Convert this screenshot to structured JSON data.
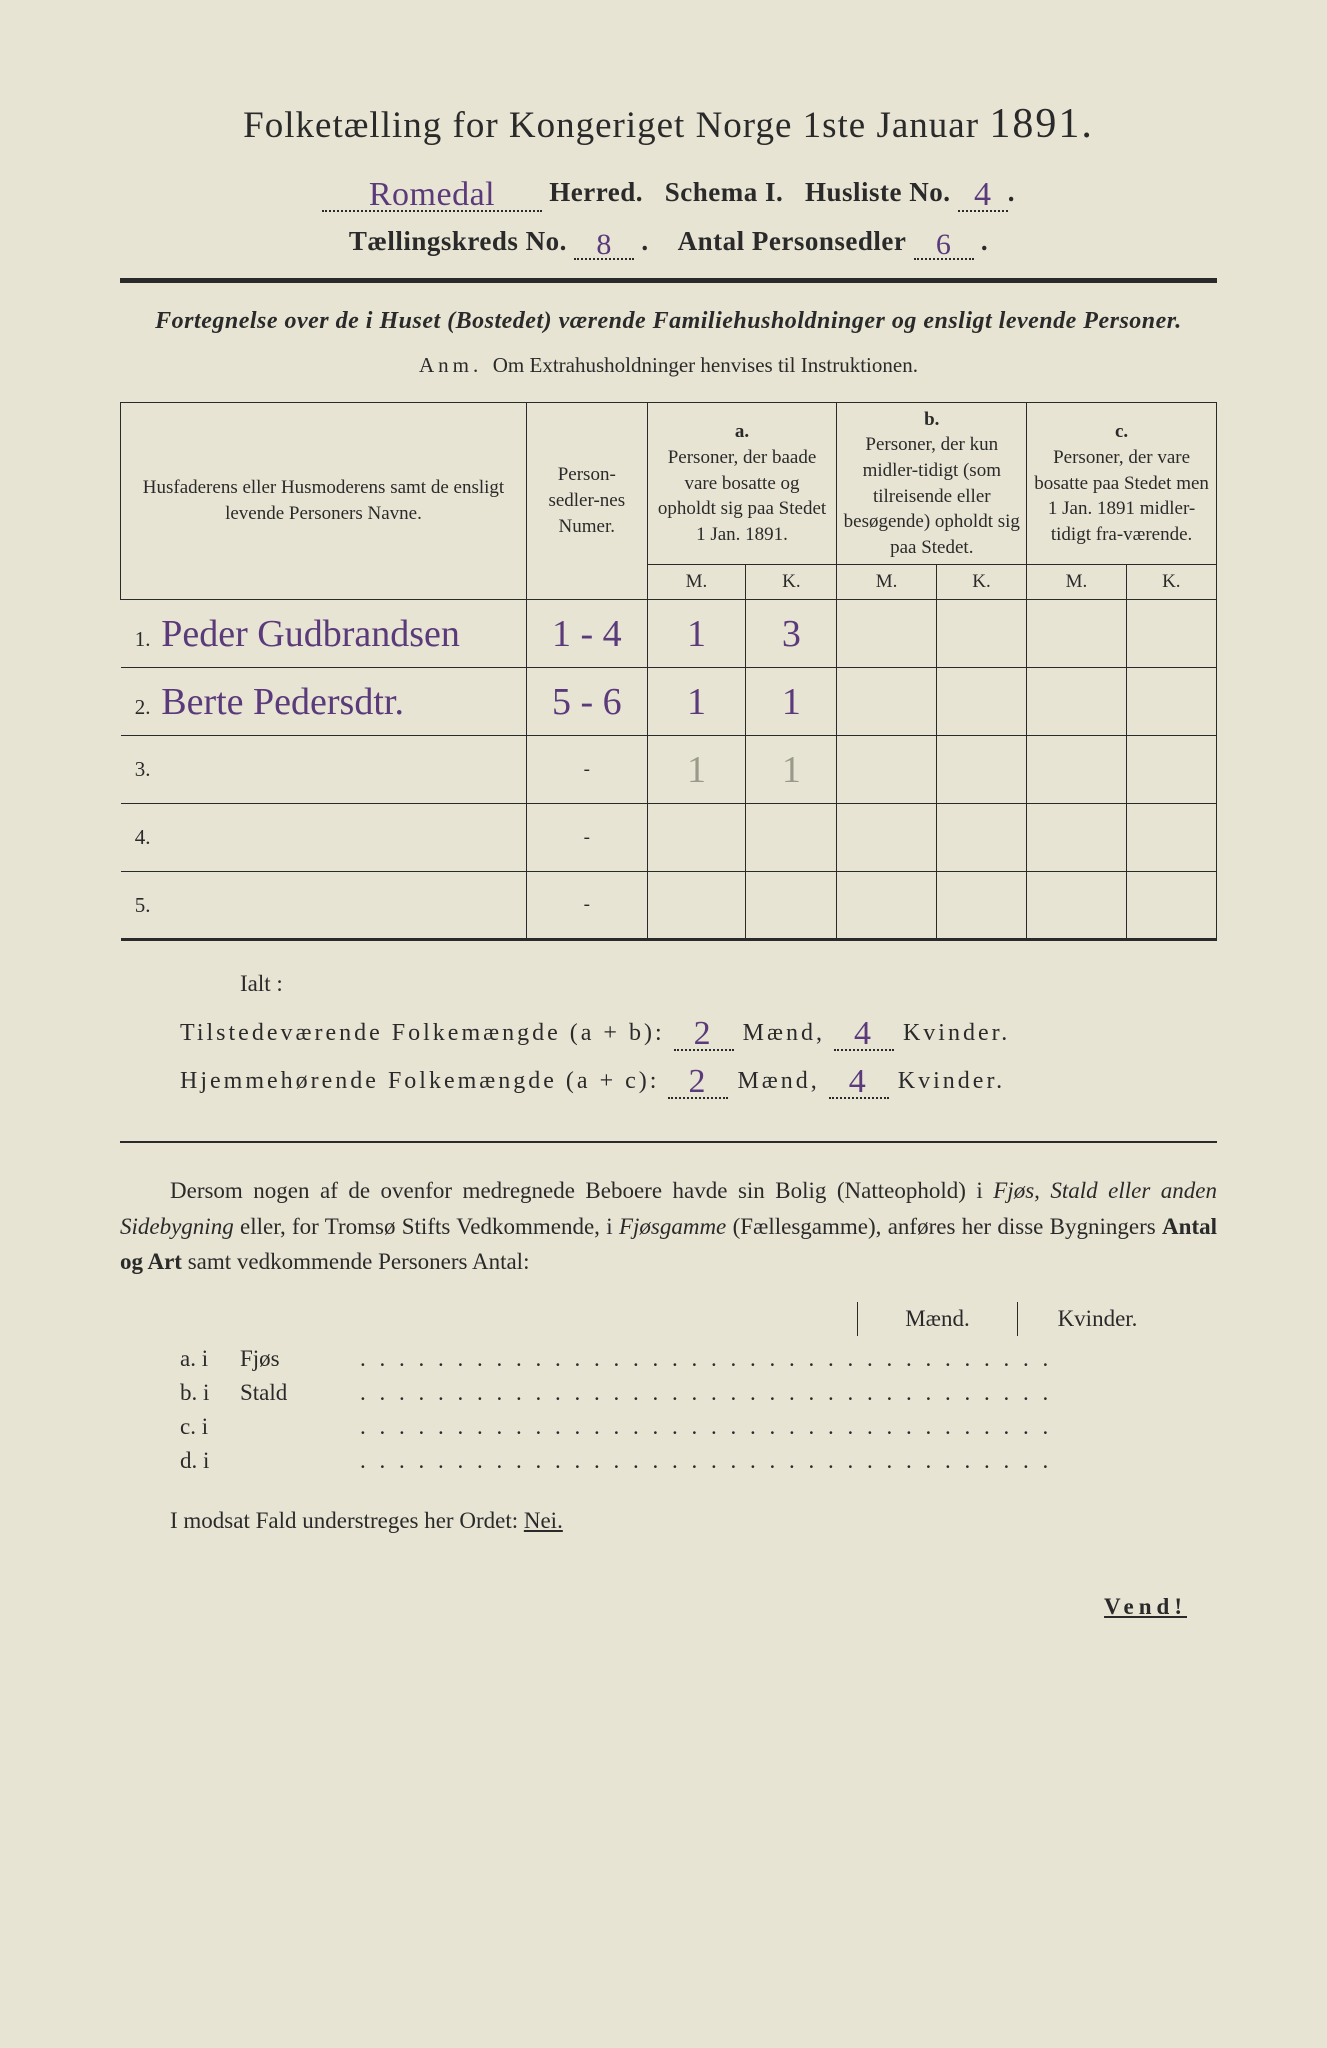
{
  "header": {
    "title_prefix": "Folketælling for Kongeriget Norge 1ste Januar",
    "year": "1891.",
    "herred_value": "Romedal",
    "herred_label": "Herred.",
    "schema_label": "Schema I.",
    "husliste_label": "Husliste No.",
    "husliste_value": "4",
    "kreds_label": "Tællingskreds No.",
    "kreds_value": "8",
    "antal_label": "Antal Personsedler",
    "antal_value": "6"
  },
  "subtitle": {
    "line1": "Fortegnelse over de i Huset (Bostedet) værende Familiehusholdninger og ensligt levende Personer.",
    "line2_anm": "Anm.",
    "line2_rest": "Om Extrahusholdninger henvises til Instruktionen."
  },
  "table": {
    "col1": "Husfaderens eller Husmoderens samt de ensligt levende Personers Navne.",
    "col2": "Person-sedler-nes Numer.",
    "col_a_letter": "a.",
    "col_a": "Personer, der baade vare bosatte og opholdt sig paa Stedet 1 Jan. 1891.",
    "col_b_letter": "b.",
    "col_b": "Personer, der kun midler-tidigt (som tilreisende eller besøgende) opholdt sig paa Stedet.",
    "col_c_letter": "c.",
    "col_c": "Personer, der vare bosatte paa Stedet men 1 Jan. 1891 midler-tidigt fra-værende.",
    "M": "M.",
    "K": "K.",
    "rows": [
      {
        "n": "1.",
        "name": "Peder Gudbrandsen",
        "num": "1 - 4",
        "aM": "1",
        "aK": "3",
        "bM": "",
        "bK": "",
        "cM": "",
        "cK": ""
      },
      {
        "n": "2.",
        "name": "Berte Pedersdtr.",
        "num": "5 - 6",
        "aM": "1",
        "aK": "1",
        "bM": "",
        "bK": "",
        "cM": "",
        "cK": ""
      },
      {
        "n": "3.",
        "name": "",
        "num": "-",
        "aM": "1",
        "aK": "1",
        "bM": "",
        "bK": "",
        "cM": "",
        "cK": "",
        "faint": true
      },
      {
        "n": "4.",
        "name": "",
        "num": "-",
        "aM": "",
        "aK": "",
        "bM": "",
        "bK": "",
        "cM": "",
        "cK": ""
      },
      {
        "n": "5.",
        "name": "",
        "num": "-",
        "aM": "",
        "aK": "",
        "bM": "",
        "bK": "",
        "cM": "",
        "cK": ""
      }
    ]
  },
  "totals": {
    "ialt": "Ialt :",
    "line1_label": "Tilstedeværende Folkemængde (a + b):",
    "line2_label": "Hjemmehørende Folkemængde (a + c):",
    "maend": "Mænd,",
    "kvinder": "Kvinder.",
    "l1_m": "2",
    "l1_k": "4",
    "l2_m": "2",
    "l2_k": "4"
  },
  "para": "Dersom nogen af de ovenfor medregnede Beboere havde sin Bolig (Natteophold) i Fjøs, Stald eller anden Sidebygning eller, for Tromsø Stifts Vedkommende, i Fjøsgamme (Fællesgamme), anføres her disse Bygningers Antal og Art samt vedkommende Personers Antal:",
  "build": {
    "maend": "Mænd.",
    "kvinder": "Kvinder.",
    "rows": [
      {
        "lbl": "a.  i",
        "kind": "Fjøs"
      },
      {
        "lbl": "b.  i",
        "kind": "Stald"
      },
      {
        "lbl": "c.  i",
        "kind": ""
      },
      {
        "lbl": "d.  i",
        "kind": ""
      }
    ]
  },
  "nei": {
    "text": "I modsat Fald understreges her Ordet:",
    "word": "Nei."
  },
  "vend": "Vend!"
}
